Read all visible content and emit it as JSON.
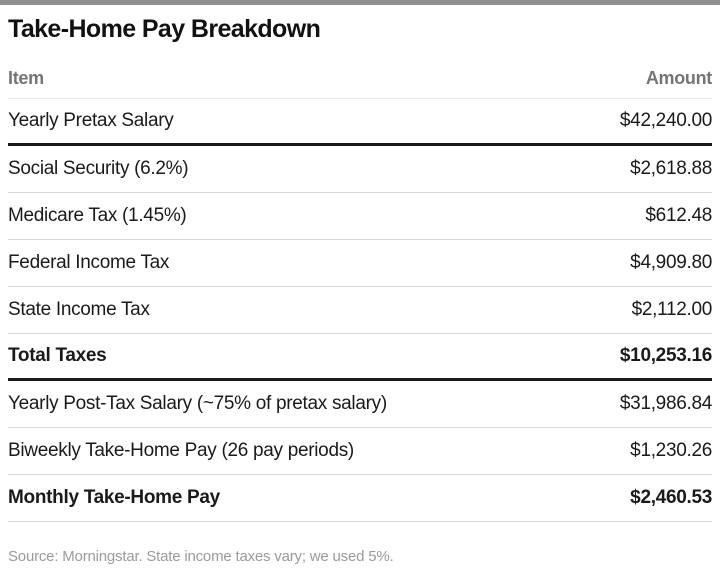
{
  "header": {
    "title": "Take-Home Pay Breakdown"
  },
  "table": {
    "columns": {
      "item": "Item",
      "amount": "Amount"
    },
    "rows": [
      {
        "item": "Yearly Pretax Salary",
        "amount": "$42,240.00",
        "bold": false,
        "divider": "thick"
      },
      {
        "item": "Social Security (6.2%)",
        "amount": "$2,618.88",
        "bold": false,
        "divider": "light"
      },
      {
        "item": "Medicare Tax (1.45%)",
        "amount": "$612.48",
        "bold": false,
        "divider": "light"
      },
      {
        "item": "Federal Income Tax",
        "amount": "$4,909.80",
        "bold": false,
        "divider": "light"
      },
      {
        "item": "State Income Tax",
        "amount": "$2,112.00",
        "bold": false,
        "divider": "light"
      },
      {
        "item": "Total Taxes",
        "amount": "$10,253.16",
        "bold": true,
        "divider": "thick"
      },
      {
        "item": "Yearly Post-Tax Salary (~75% of pretax salary)",
        "amount": "$31,986.84",
        "bold": false,
        "divider": "light"
      },
      {
        "item": "Biweekly Take-Home Pay (26 pay periods)",
        "amount": "$1,230.26",
        "bold": false,
        "divider": "light"
      },
      {
        "item": "Monthly Take-Home Pay",
        "amount": "$2,460.53",
        "bold": true,
        "divider": "light"
      }
    ]
  },
  "footer": {
    "source_note": "Source: Morningstar. State income taxes vary; we used 5%."
  },
  "colors": {
    "top_bar": "#8f8f8f",
    "title_text": "#111111",
    "header_text": "#757575",
    "row_text": "#1a1a1a",
    "light_divider": "#d9d9d9",
    "thick_divider": "#1a1a1a",
    "source_text": "#9b9b9b",
    "background": "#ffffff"
  },
  "chart_data": {
    "type": "table",
    "title": "Take-Home Pay Breakdown",
    "columns": [
      "Item",
      "Amount"
    ],
    "rows": [
      [
        "Yearly Pretax Salary",
        42240.0
      ],
      [
        "Social Security (6.2%)",
        2618.88
      ],
      [
        "Medicare Tax (1.45%)",
        612.48
      ],
      [
        "Federal Income Tax",
        4909.8
      ],
      [
        "State Income Tax",
        2112.0
      ],
      [
        "Total Taxes",
        10253.16
      ],
      [
        "Yearly Post-Tax Salary (~75% of pretax salary)",
        31986.84
      ],
      [
        "Biweekly Take-Home Pay (26 pay periods)",
        1230.26
      ],
      [
        "Monthly Take-Home Pay",
        2460.53
      ]
    ],
    "bold_rows": [
      "Total Taxes",
      "Monthly Take-Home Pay"
    ],
    "source": "Source: Morningstar. State income taxes vary; we used 5%."
  }
}
